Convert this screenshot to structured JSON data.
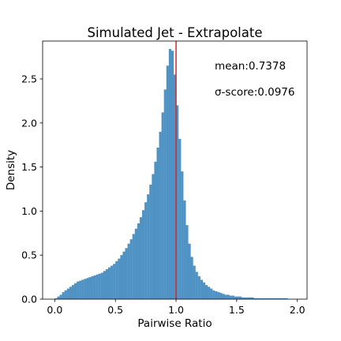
{
  "chart_data": {
    "type": "histogram",
    "title": "Simulated Jet - Extrapolate",
    "xlabel": "Pairwise Ratio",
    "ylabel": "Density",
    "xlim": [
      -0.1,
      2.08
    ],
    "ylim": [
      0,
      2.93
    ],
    "xticks": [
      "0.0",
      "0.5",
      "1.0",
      "1.5",
      "2.0"
    ],
    "xtick_values": [
      0.0,
      0.5,
      1.0,
      1.5,
      2.0
    ],
    "yticks": [
      "0.0",
      "0.5",
      "1.0",
      "1.5",
      "2.0",
      "2.5"
    ],
    "ytick_values": [
      0.0,
      0.5,
      1.0,
      1.5,
      2.0,
      2.5
    ],
    "bin_start": 0.0,
    "bin_width": 0.02,
    "values": [
      0.01,
      0.03,
      0.05,
      0.08,
      0.1,
      0.12,
      0.14,
      0.16,
      0.18,
      0.2,
      0.21,
      0.22,
      0.23,
      0.24,
      0.25,
      0.26,
      0.27,
      0.28,
      0.29,
      0.3,
      0.32,
      0.34,
      0.36,
      0.38,
      0.4,
      0.43,
      0.46,
      0.5,
      0.54,
      0.58,
      0.63,
      0.68,
      0.74,
      0.8,
      0.86,
      0.93,
      1.01,
      1.1,
      1.19,
      1.3,
      1.42,
      1.56,
      1.72,
      1.9,
      2.12,
      2.38,
      2.65,
      2.84,
      2.82,
      2.55,
      2.2,
      1.82,
      1.45,
      1.12,
      0.84,
      0.63,
      0.48,
      0.38,
      0.31,
      0.26,
      0.22,
      0.19,
      0.16,
      0.14,
      0.12,
      0.1,
      0.09,
      0.08,
      0.07,
      0.06,
      0.05,
      0.05,
      0.04,
      0.04,
      0.03,
      0.03,
      0.03,
      0.02,
      0.02,
      0.02,
      0.02,
      0.02,
      0.01,
      0.01,
      0.01,
      0.01,
      0.01,
      0.01,
      0.01,
      0.01,
      0.01,
      0.01,
      0.01,
      0.01,
      0.01,
      0.01,
      0.0,
      0.0,
      0.0,
      0.0
    ],
    "bar_color": "#4f93c4",
    "vline": {
      "x": 1.0,
      "color": "#d62728"
    },
    "annotations": [
      "mean:0.7378",
      "σ-score:0.0976"
    ],
    "grid": false
  }
}
